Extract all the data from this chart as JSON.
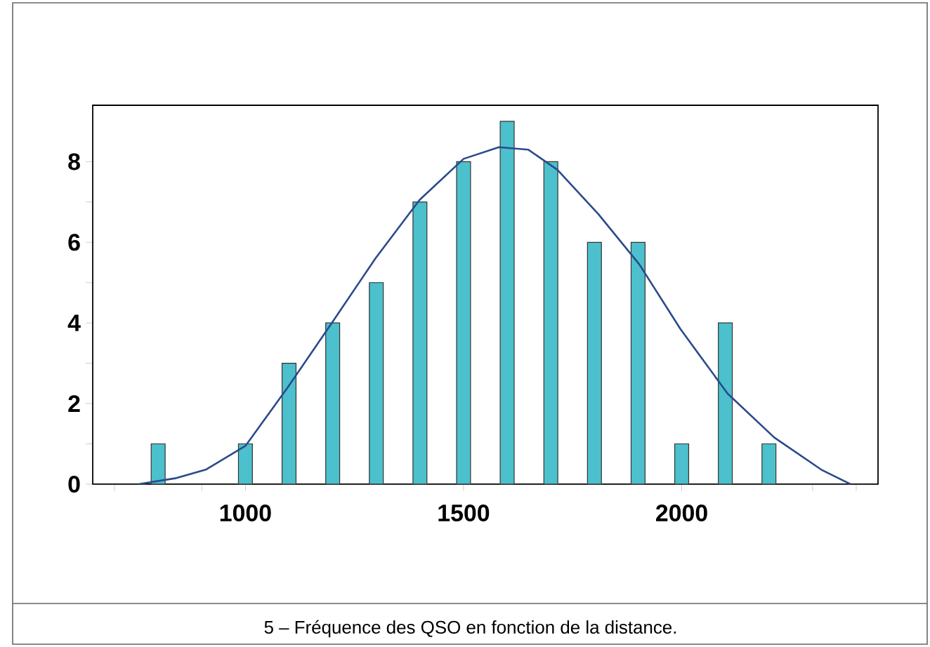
{
  "chart_data": {
    "type": "bar",
    "series": [
      {
        "color": "#4cc0cc",
        "x": [
          800,
          1000,
          1100,
          1200,
          1300,
          1400,
          1500,
          1600,
          1700,
          1800,
          1900,
          2000,
          2100,
          2200
        ],
        "values": [
          1,
          1,
          3,
          4,
          5,
          7,
          8,
          9,
          8,
          6,
          6,
          1,
          4,
          1
        ]
      },
      {
        "type": "line",
        "color": "#2b4a8c",
        "x": [
          754,
          841,
          909,
          1000,
          1097,
          1198,
          1298,
          1399,
          1500,
          1581,
          1648,
          1715,
          1809,
          1903,
          1997,
          2105,
          2212,
          2320,
          2387
        ],
        "values": [
          0,
          0.15,
          0.36,
          0.95,
          2.4,
          4.0,
          5.6,
          7.05,
          8.07,
          8.36,
          8.3,
          7.8,
          6.7,
          5.45,
          3.85,
          2.25,
          1.16,
          0.36,
          0
        ]
      }
    ],
    "xlim": [
      650,
      2450
    ],
    "ylim": [
      0,
      9.4
    ],
    "xticks": [
      {
        "value": 700,
        "label": null
      },
      {
        "value": 900,
        "label": null
      },
      1000,
      1500,
      2000,
      {
        "value": 2300,
        "label": null
      },
      {
        "value": 2400,
        "label": null
      }
    ],
    "yticks": [
      0,
      {
        "value": 1,
        "label": null
      },
      2,
      {
        "value": 3,
        "label": null
      },
      4,
      {
        "value": 5,
        "label": null
      },
      6,
      {
        "value": 7,
        "label": null
      },
      8
    ],
    "grid": false,
    "annotations": [
      "5 – Fréquence des QSO en fonction de la distance."
    ]
  }
}
